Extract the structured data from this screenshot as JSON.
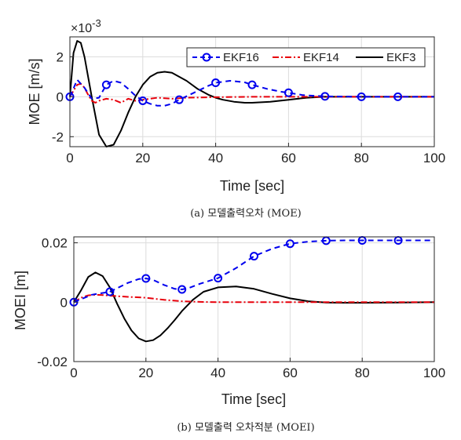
{
  "chart_data": [
    {
      "type": "line",
      "caption": "(a) 모델출력오차 (MOE)",
      "xlabel": "Time [sec]",
      "ylabel": "MOE [m/s]",
      "y_exponent": "×10",
      "y_exponent_power": "-3",
      "xlim": [
        0,
        100
      ],
      "ylim": [
        -2.5,
        3.0
      ],
      "xticks": [
        0,
        20,
        40,
        60,
        80,
        100
      ],
      "yticks": [
        -2,
        0,
        2
      ],
      "xtick_labels": [
        "0",
        "20",
        "40",
        "60",
        "80",
        "100"
      ],
      "ytick_labels": [
        "-2",
        "0",
        "2"
      ],
      "grid": true,
      "legend_position": "top",
      "legend_orientation": "horizontal",
      "series": [
        {
          "name": "EKF16",
          "color": "#0000ee",
          "line_style": "dashed",
          "marker": "circle",
          "x": [
            0,
            2,
            4,
            6,
            8,
            10,
            12,
            14,
            16,
            18,
            20,
            22,
            24,
            26,
            28,
            30,
            34,
            38,
            40,
            44,
            48,
            50,
            54,
            58,
            60,
            64,
            70,
            75,
            80,
            90,
            100
          ],
          "y": [
            0,
            0.85,
            0.45,
            -0.1,
            -0.05,
            0.6,
            0.8,
            0.7,
            0.4,
            0.05,
            -0.2,
            -0.35,
            -0.45,
            -0.45,
            -0.35,
            -0.15,
            0.2,
            0.55,
            0.7,
            0.8,
            0.72,
            0.6,
            0.4,
            0.25,
            0.2,
            0.08,
            0.02,
            0.01,
            0.0,
            0.0,
            0.0
          ],
          "marker_x": [
            0,
            10,
            20,
            30,
            40,
            50,
            60,
            70,
            80,
            90
          ]
        },
        {
          "name": "EKF14",
          "color": "#e8000b",
          "line_style": "dashdot",
          "marker": "none",
          "x": [
            0,
            1,
            2,
            3,
            4,
            5,
            6,
            7,
            8,
            10,
            12,
            14,
            16,
            18,
            20,
            24,
            28,
            32,
            40,
            50,
            60,
            80,
            100
          ],
          "y": [
            0,
            0.3,
            0.6,
            0.65,
            0.45,
            0.1,
            -0.2,
            -0.3,
            -0.2,
            -0.1,
            -0.15,
            -0.3,
            -0.1,
            -0.2,
            -0.15,
            -0.05,
            -0.1,
            -0.05,
            -0.02,
            0.0,
            0.0,
            0.0,
            0.0
          ],
          "marker_x": []
        },
        {
          "name": "EKF3",
          "color": "#000000",
          "line_style": "solid",
          "marker": "none",
          "x": [
            0,
            1,
            2,
            3,
            4,
            6,
            8,
            10,
            12,
            14,
            16,
            18,
            20,
            22,
            24,
            26,
            28,
            30,
            32,
            35,
            38,
            40,
            42,
            45,
            48,
            50,
            55,
            60,
            65,
            70,
            75,
            80,
            90,
            100
          ],
          "y": [
            0,
            2.2,
            2.8,
            2.7,
            2.0,
            0.0,
            -1.9,
            -2.5,
            -2.4,
            -1.7,
            -0.8,
            0.0,
            0.6,
            1.0,
            1.2,
            1.25,
            1.2,
            1.0,
            0.8,
            0.4,
            0.1,
            -0.05,
            -0.15,
            -0.25,
            -0.3,
            -0.3,
            -0.25,
            -0.15,
            -0.05,
            0.0,
            0.0,
            0.0,
            0.0,
            0.0
          ],
          "marker_x": []
        }
      ]
    },
    {
      "type": "line",
      "caption": "(b) 모델출력 오차적분 (MOEI)",
      "xlabel": "Time [sec]",
      "ylabel": "MOEI [m]",
      "xlim": [
        0,
        100
      ],
      "ylim": [
        -0.02,
        0.022
      ],
      "xticks": [
        0,
        20,
        40,
        60,
        80,
        100
      ],
      "yticks": [
        -0.02,
        0,
        0.02
      ],
      "xtick_labels": [
        "0",
        "20",
        "40",
        "60",
        "80",
        "100"
      ],
      "ytick_labels": [
        "-0.02",
        "0",
        "0.02"
      ],
      "grid": true,
      "legend_position": "none",
      "series": [
        {
          "name": "EKF16",
          "color": "#0000ee",
          "line_style": "dashed",
          "marker": "circle",
          "x": [
            0,
            5,
            10,
            15,
            18,
            20,
            22,
            25,
            28,
            30,
            32,
            35,
            40,
            45,
            50,
            55,
            60,
            65,
            70,
            75,
            80,
            85,
            90,
            95,
            100
          ],
          "y": [
            0,
            0.0025,
            0.0035,
            0.0065,
            0.0078,
            0.008,
            0.0075,
            0.0058,
            0.0045,
            0.0043,
            0.0048,
            0.0062,
            0.0081,
            0.0115,
            0.0155,
            0.018,
            0.0197,
            0.0204,
            0.0207,
            0.0208,
            0.0208,
            0.0208,
            0.0208,
            0.0208,
            0.0208
          ],
          "marker_x": [
            0,
            10,
            20,
            30,
            40,
            50,
            60,
            70,
            80,
            90
          ]
        },
        {
          "name": "EKF14",
          "color": "#e8000b",
          "line_style": "dashdot",
          "marker": "none",
          "x": [
            0,
            2,
            4,
            6,
            8,
            10,
            15,
            20,
            25,
            30,
            35,
            40,
            50,
            60,
            80,
            100
          ],
          "y": [
            0,
            0.0015,
            0.0023,
            0.0025,
            0.0024,
            0.0022,
            0.0018,
            0.0015,
            0.0008,
            0.0003,
            0.0001,
            0.0,
            0.0,
            0.0,
            0.0,
            0.0
          ],
          "marker_x": []
        },
        {
          "name": "EKF3",
          "color": "#000000",
          "line_style": "solid",
          "marker": "none",
          "x": [
            0,
            2,
            4,
            6,
            8,
            10,
            12,
            14,
            16,
            18,
            20,
            22,
            24,
            26,
            28,
            30,
            33,
            36,
            40,
            45,
            50,
            55,
            60,
            65,
            70,
            75,
            80,
            90,
            100
          ],
          "y": [
            0,
            0.004,
            0.0085,
            0.01,
            0.0088,
            0.005,
            -0.0005,
            -0.0055,
            -0.0095,
            -0.0122,
            -0.0132,
            -0.0128,
            -0.0112,
            -0.0088,
            -0.006,
            -0.003,
            0.0008,
            0.0035,
            0.005,
            0.0053,
            0.0045,
            0.0028,
            0.0013,
            0.0003,
            -0.0001,
            -0.0002,
            -0.0002,
            -0.0001,
            0.0
          ]
        }
      ]
    }
  ]
}
